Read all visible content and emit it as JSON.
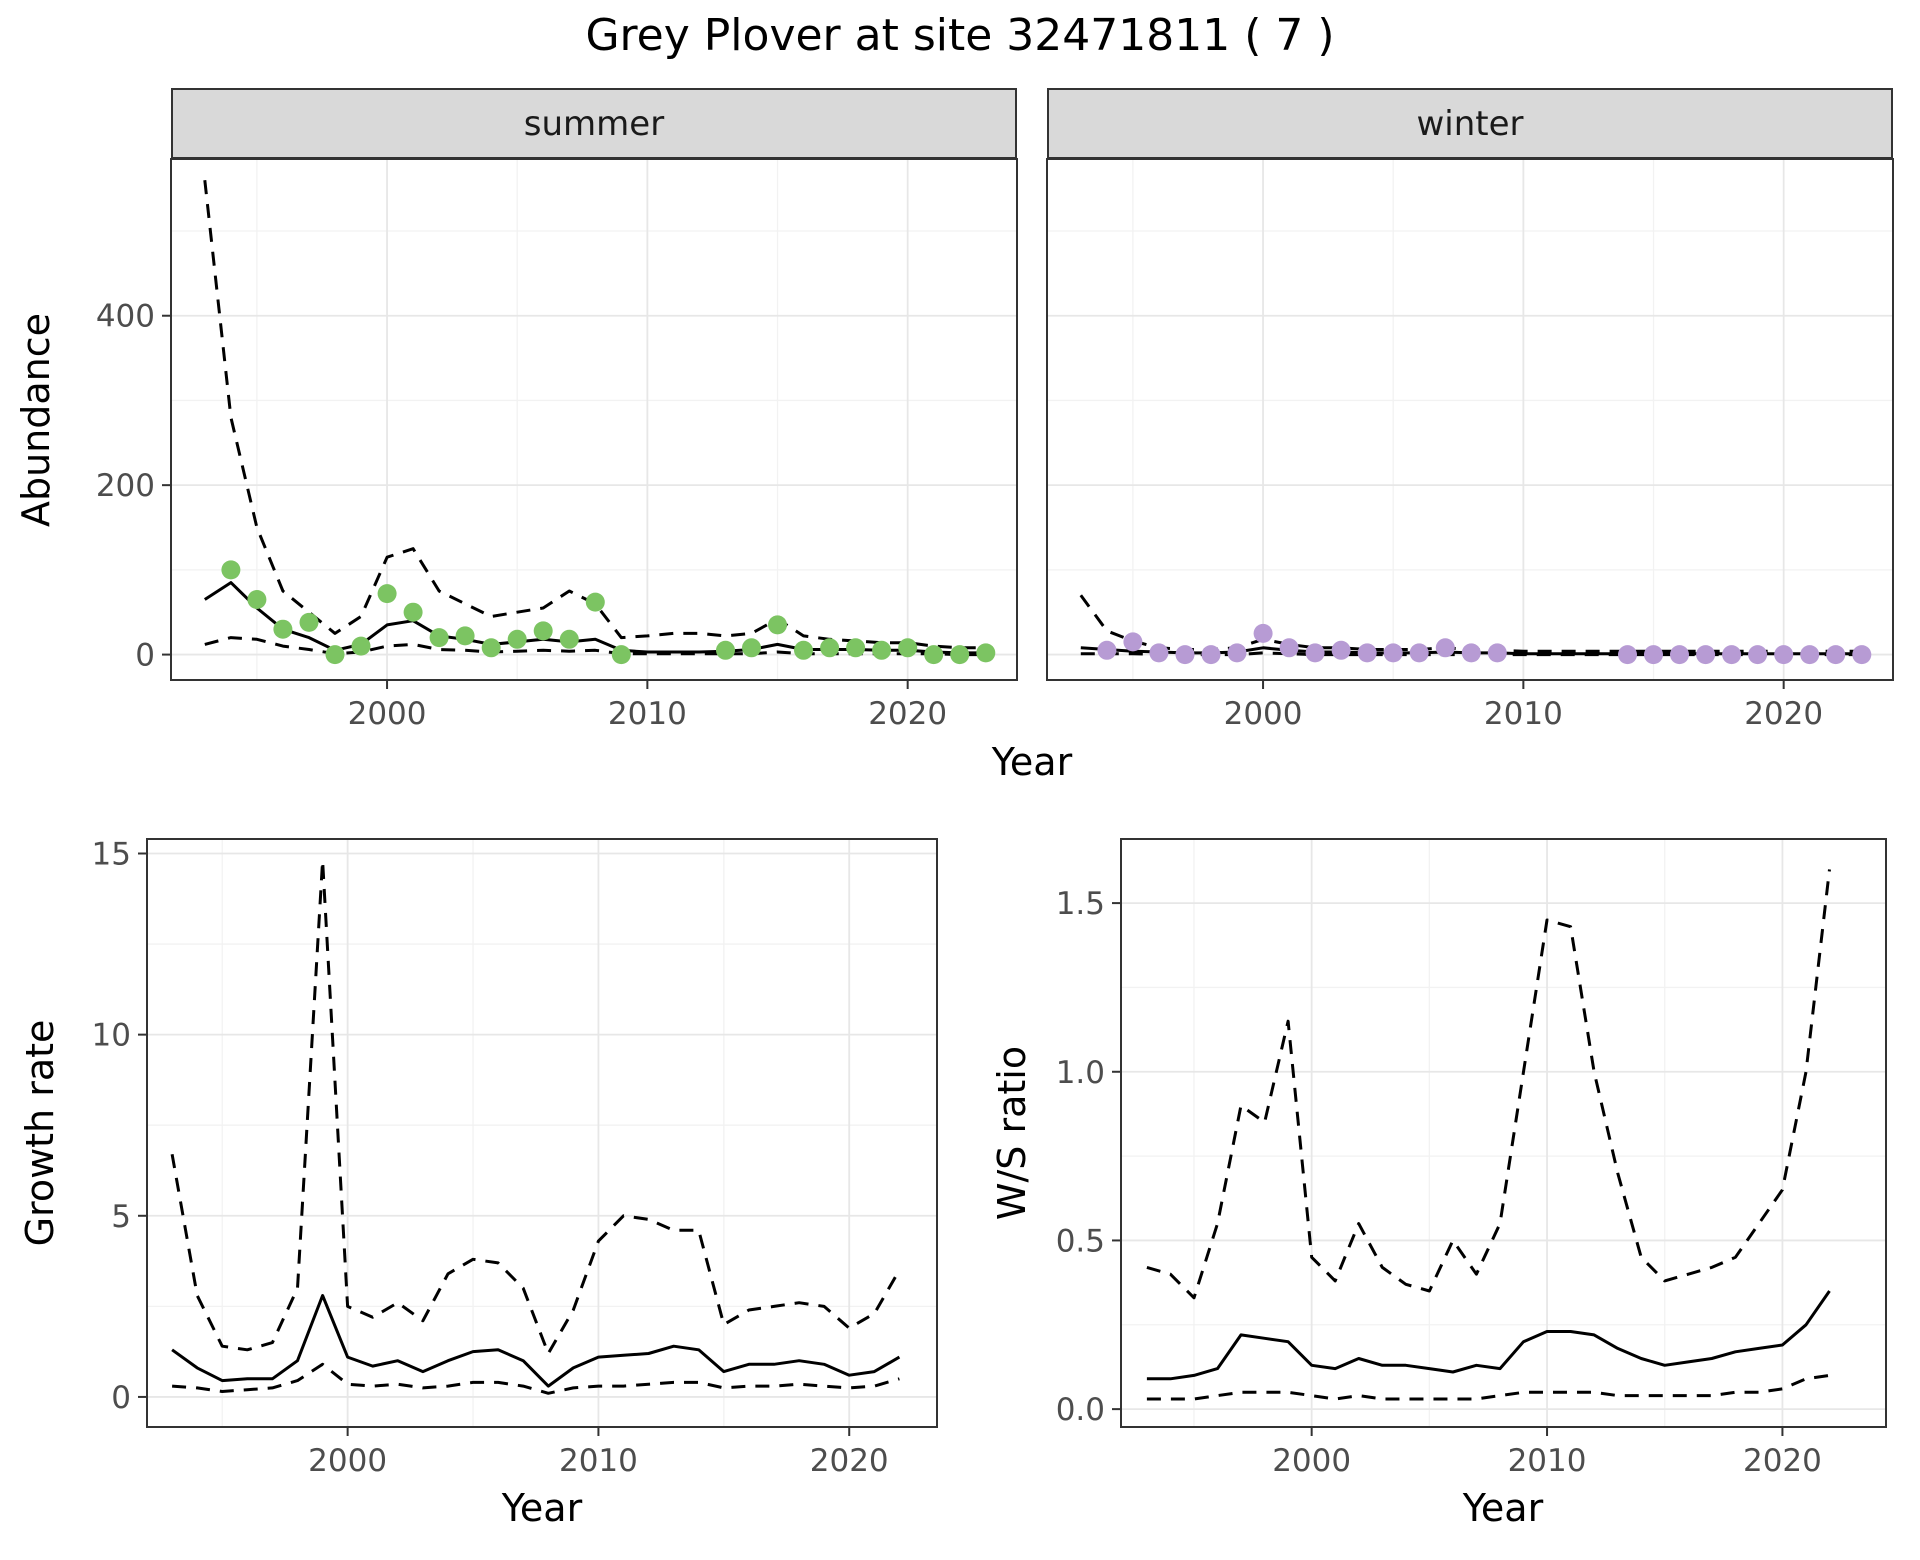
{
  "page": {
    "title": "Grey Plover at site 32471811 ( 7 )"
  },
  "top_figure": {
    "xlabel": "Year",
    "ylabel": "Abundance"
  },
  "colors": {
    "summer_point": "#7cc462",
    "winter_point": "#b79bd4",
    "line": "#000000",
    "strip_fill": "#d9d9d9"
  },
  "chart_data": [
    {
      "id": "summer",
      "type": "line+scatter",
      "title": "summer",
      "xlabel": "Year",
      "ylabel": "Abundance",
      "xlim": [
        1991.7,
        2024.2
      ],
      "ylim": [
        -30,
        585
      ],
      "xticks": {
        "values": [
          2000,
          2010,
          2020
        ],
        "labels": [
          "2000",
          "2010",
          "2020"
        ]
      },
      "yticks": {
        "values": [
          0,
          200,
          400
        ],
        "labels": [
          "0",
          "200",
          "400"
        ]
      },
      "x": [
        1993,
        1994,
        1995,
        1996,
        1997,
        1998,
        1999,
        2000,
        2001,
        2002,
        2003,
        2004,
        2005,
        2006,
        2007,
        2008,
        2009,
        2010,
        2011,
        2012,
        2013,
        2014,
        2015,
        2016,
        2017,
        2018,
        2019,
        2020,
        2021,
        2022,
        2023
      ],
      "series": [
        {
          "name": "mean",
          "line": "solid",
          "values": [
            65,
            85,
            55,
            30,
            20,
            5,
            12,
            35,
            40,
            22,
            18,
            12,
            15,
            18,
            15,
            18,
            5,
            3,
            3,
            3,
            4,
            6,
            12,
            6,
            6,
            6,
            5,
            5,
            3,
            2,
            2
          ]
        },
        {
          "name": "upper_ci",
          "line": "dashed",
          "values": [
            560,
            280,
            150,
            75,
            50,
            25,
            45,
            115,
            125,
            75,
            60,
            45,
            50,
            55,
            75,
            60,
            20,
            22,
            25,
            25,
            22,
            25,
            42,
            22,
            18,
            16,
            14,
            14,
            10,
            8,
            8
          ]
        },
        {
          "name": "lower_ci",
          "line": "dashed",
          "values": [
            12,
            20,
            18,
            10,
            6,
            1,
            3,
            10,
            12,
            6,
            5,
            3,
            4,
            5,
            4,
            5,
            1,
            1,
            1,
            1,
            1,
            1,
            3,
            1,
            1,
            1,
            1,
            1,
            1,
            0,
            0
          ]
        }
      ],
      "points": {
        "name": "observed_counts",
        "color": "#7cc462",
        "x": [
          1994,
          1995,
          1996,
          1997,
          1998,
          1999,
          2000,
          2001,
          2002,
          2003,
          2004,
          2005,
          2006,
          2007,
          2008,
          2009,
          2013,
          2014,
          2015,
          2016,
          2017,
          2018,
          2019,
          2020,
          2021,
          2022,
          2023
        ],
        "y": [
          100,
          65,
          30,
          38,
          0,
          10,
          72,
          50,
          20,
          22,
          8,
          18,
          28,
          18,
          62,
          0,
          5,
          8,
          35,
          5,
          8,
          8,
          5,
          8,
          0,
          0,
          2
        ]
      }
    },
    {
      "id": "winter",
      "type": "line+scatter",
      "title": "winter",
      "xlabel": "Year",
      "ylabel": "Abundance",
      "xlim": [
        1991.7,
        2024.2
      ],
      "ylim": [
        -30,
        585
      ],
      "xticks": {
        "values": [
          2000,
          2010,
          2020
        ],
        "labels": [
          "2000",
          "2010",
          "2020"
        ]
      },
      "yticks": {
        "values": [
          0,
          200,
          400
        ],
        "labels": [
          "0",
          "200",
          "400"
        ]
      },
      "x": [
        1993,
        1994,
        1995,
        1996,
        1997,
        1998,
        1999,
        2000,
        2001,
        2002,
        2003,
        2004,
        2005,
        2006,
        2007,
        2008,
        2009,
        2010,
        2011,
        2012,
        2013,
        2014,
        2015,
        2016,
        2017,
        2018,
        2019,
        2020,
        2021,
        2022,
        2023
      ],
      "series": [
        {
          "name": "mean",
          "line": "solid",
          "values": [
            8,
            6,
            4,
            3,
            2,
            2,
            3,
            8,
            5,
            3,
            3,
            2,
            2,
            2,
            3,
            2,
            2,
            1,
            1,
            1,
            1,
            1,
            1,
            1,
            1,
            1,
            1,
            1,
            1,
            1,
            1
          ]
        },
        {
          "name": "upper_ci",
          "line": "dashed",
          "values": [
            70,
            28,
            16,
            8,
            6,
            6,
            8,
            18,
            12,
            8,
            8,
            6,
            6,
            6,
            8,
            6,
            5,
            4,
            4,
            4,
            4,
            4,
            4,
            4,
            4,
            4,
            4,
            4,
            4,
            4,
            4
          ]
        },
        {
          "name": "lower_ci",
          "line": "dashed",
          "values": [
            1,
            1,
            1,
            0,
            0,
            0,
            0,
            2,
            1,
            0,
            0,
            0,
            0,
            0,
            0,
            0,
            0,
            0,
            0,
            0,
            0,
            0,
            0,
            0,
            0,
            0,
            0,
            0,
            0,
            0,
            0
          ]
        }
      ],
      "points": {
        "name": "observed_counts",
        "color": "#b79bd4",
        "x": [
          1994,
          1995,
          1996,
          1997,
          1998,
          1999,
          2000,
          2001,
          2002,
          2003,
          2004,
          2005,
          2006,
          2007,
          2008,
          2009,
          2014,
          2015,
          2016,
          2017,
          2018,
          2019,
          2020,
          2021,
          2022,
          2023
        ],
        "y": [
          5,
          15,
          2,
          0,
          0,
          2,
          25,
          8,
          2,
          5,
          2,
          2,
          2,
          8,
          2,
          2,
          0,
          0,
          0,
          0,
          0,
          0,
          0,
          0,
          0,
          0
        ]
      }
    },
    {
      "id": "growth",
      "type": "line",
      "title": "Growth rate",
      "xlabel": "Year",
      "ylabel": "Growth rate",
      "xlim": [
        1992,
        2023.5
      ],
      "ylim": [
        -0.83,
        15.4
      ],
      "xticks": {
        "values": [
          2000,
          2010,
          2020
        ],
        "labels": [
          "2000",
          "2010",
          "2020"
        ]
      },
      "yticks": {
        "values": [
          0,
          5,
          10,
          15
        ],
        "labels": [
          "0",
          "5",
          "10",
          "15"
        ]
      },
      "x": [
        1993,
        1994,
        1995,
        1996,
        1997,
        1998,
        1999,
        2000,
        2001,
        2002,
        2003,
        2004,
        2005,
        2006,
        2007,
        2008,
        2009,
        2010,
        2011,
        2012,
        2013,
        2014,
        2015,
        2016,
        2017,
        2018,
        2019,
        2020,
        2021,
        2022
      ],
      "series": [
        {
          "name": "mean",
          "line": "solid",
          "values": [
            1.3,
            0.8,
            0.45,
            0.5,
            0.5,
            1.0,
            2.8,
            1.1,
            0.85,
            1.0,
            0.7,
            1.0,
            1.25,
            1.3,
            1.0,
            0.3,
            0.8,
            1.1,
            1.15,
            1.2,
            1.4,
            1.3,
            0.7,
            0.9,
            0.9,
            1.0,
            0.9,
            0.6,
            0.7,
            1.1
          ]
        },
        {
          "name": "upper_ci",
          "line": "dashed",
          "values": [
            6.7,
            2.8,
            1.4,
            1.3,
            1.5,
            3.0,
            14.8,
            2.5,
            2.2,
            2.6,
            2.1,
            3.4,
            3.8,
            3.7,
            3.0,
            1.2,
            2.4,
            4.3,
            5.0,
            4.9,
            4.6,
            4.6,
            2.0,
            2.4,
            2.5,
            2.6,
            2.5,
            1.9,
            2.3,
            3.5
          ]
        },
        {
          "name": "lower_ci",
          "line": "dashed",
          "values": [
            0.3,
            0.25,
            0.15,
            0.2,
            0.25,
            0.45,
            0.9,
            0.35,
            0.3,
            0.35,
            0.25,
            0.3,
            0.4,
            0.4,
            0.3,
            0.1,
            0.25,
            0.3,
            0.3,
            0.35,
            0.4,
            0.4,
            0.25,
            0.3,
            0.3,
            0.35,
            0.3,
            0.25,
            0.3,
            0.5
          ]
        }
      ]
    },
    {
      "id": "ws",
      "type": "line",
      "title": "W/S ratio",
      "xlabel": "Year",
      "ylabel": "W/S ratio",
      "xlim": [
        1991.9,
        2024.4
      ],
      "ylim": [
        -0.053,
        1.69
      ],
      "xticks": {
        "values": [
          2000,
          2010,
          2020
        ],
        "labels": [
          "2000",
          "2010",
          "2020"
        ]
      },
      "yticks": {
        "values": [
          0,
          0.5,
          1.0,
          1.5
        ],
        "labels": [
          "0.0",
          "0.5",
          "1.0",
          "1.5"
        ]
      },
      "x": [
        1993,
        1994,
        1995,
        1996,
        1997,
        1998,
        1999,
        2000,
        2001,
        2002,
        2003,
        2004,
        2005,
        2006,
        2007,
        2008,
        2009,
        2010,
        2011,
        2012,
        2013,
        2014,
        2015,
        2016,
        2017,
        2018,
        2019,
        2020,
        2021,
        2022
      ],
      "series": [
        {
          "name": "mean",
          "line": "solid",
          "values": [
            0.09,
            0.09,
            0.1,
            0.12,
            0.22,
            0.21,
            0.2,
            0.13,
            0.12,
            0.15,
            0.13,
            0.13,
            0.12,
            0.11,
            0.13,
            0.12,
            0.2,
            0.23,
            0.23,
            0.22,
            0.18,
            0.15,
            0.13,
            0.14,
            0.15,
            0.17,
            0.18,
            0.19,
            0.25,
            0.35
          ]
        },
        {
          "name": "upper_ci",
          "line": "dashed",
          "values": [
            0.42,
            0.4,
            0.33,
            0.55,
            0.9,
            0.85,
            1.15,
            0.45,
            0.38,
            0.55,
            0.42,
            0.37,
            0.35,
            0.5,
            0.4,
            0.55,
            1.0,
            1.45,
            1.43,
            1.0,
            0.7,
            0.45,
            0.38,
            0.4,
            0.42,
            0.45,
            0.55,
            0.65,
            1.0,
            1.6
          ]
        },
        {
          "name": "lower_ci",
          "line": "dashed",
          "values": [
            0.03,
            0.03,
            0.03,
            0.04,
            0.05,
            0.05,
            0.05,
            0.04,
            0.03,
            0.04,
            0.03,
            0.03,
            0.03,
            0.03,
            0.03,
            0.04,
            0.05,
            0.05,
            0.05,
            0.05,
            0.04,
            0.04,
            0.04,
            0.04,
            0.04,
            0.05,
            0.05,
            0.06,
            0.09,
            0.1
          ]
        }
      ]
    }
  ]
}
